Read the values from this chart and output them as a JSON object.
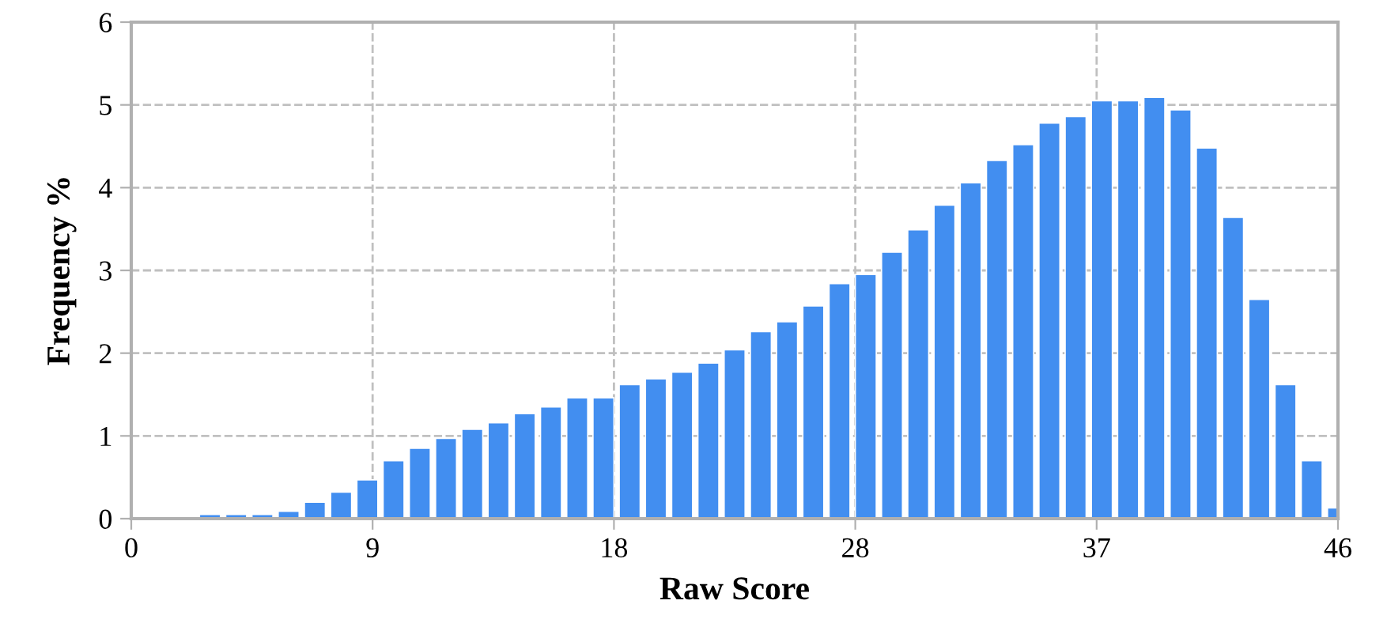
{
  "chart_data": {
    "type": "bar",
    "xlabel": "Raw Score",
    "ylabel": "Frequency %",
    "x": [
      3,
      4,
      5,
      6,
      7,
      8,
      9,
      10,
      11,
      12,
      13,
      14,
      15,
      16,
      17,
      18,
      19,
      20,
      21,
      22,
      23,
      24,
      25,
      26,
      27,
      28,
      29,
      30,
      31,
      32,
      33,
      34,
      35,
      36,
      37,
      38,
      39,
      40,
      41,
      42,
      43,
      44,
      45,
      46
    ],
    "values": [
      0.05,
      0.05,
      0.05,
      0.09,
      0.2,
      0.32,
      0.47,
      0.7,
      0.85,
      0.97,
      1.08,
      1.16,
      1.27,
      1.35,
      1.46,
      1.46,
      1.62,
      1.69,
      1.77,
      1.88,
      2.04,
      2.26,
      2.38,
      2.57,
      2.84,
      2.95,
      3.22,
      3.49,
      3.79,
      4.06,
      4.33,
      4.52,
      4.78,
      4.86,
      5.05,
      5.05,
      5.09,
      4.94,
      4.48,
      3.64,
      2.65,
      1.62,
      0.7,
      0.13
    ],
    "color": "#428ef0",
    "xlim": [
      0,
      46
    ],
    "xticks": [
      0,
      {
        "value": 9.2,
        "label": "9"
      },
      {
        "value": 18.4,
        "label": "18"
      },
      {
        "value": 27.6,
        "label": "28"
      },
      {
        "value": 36.8,
        "label": "37"
      },
      46
    ],
    "ylim": [
      0,
      6
    ],
    "yticks": [
      0,
      1,
      2,
      3,
      4,
      5,
      6
    ],
    "grid": true,
    "line_style": "dashed"
  }
}
